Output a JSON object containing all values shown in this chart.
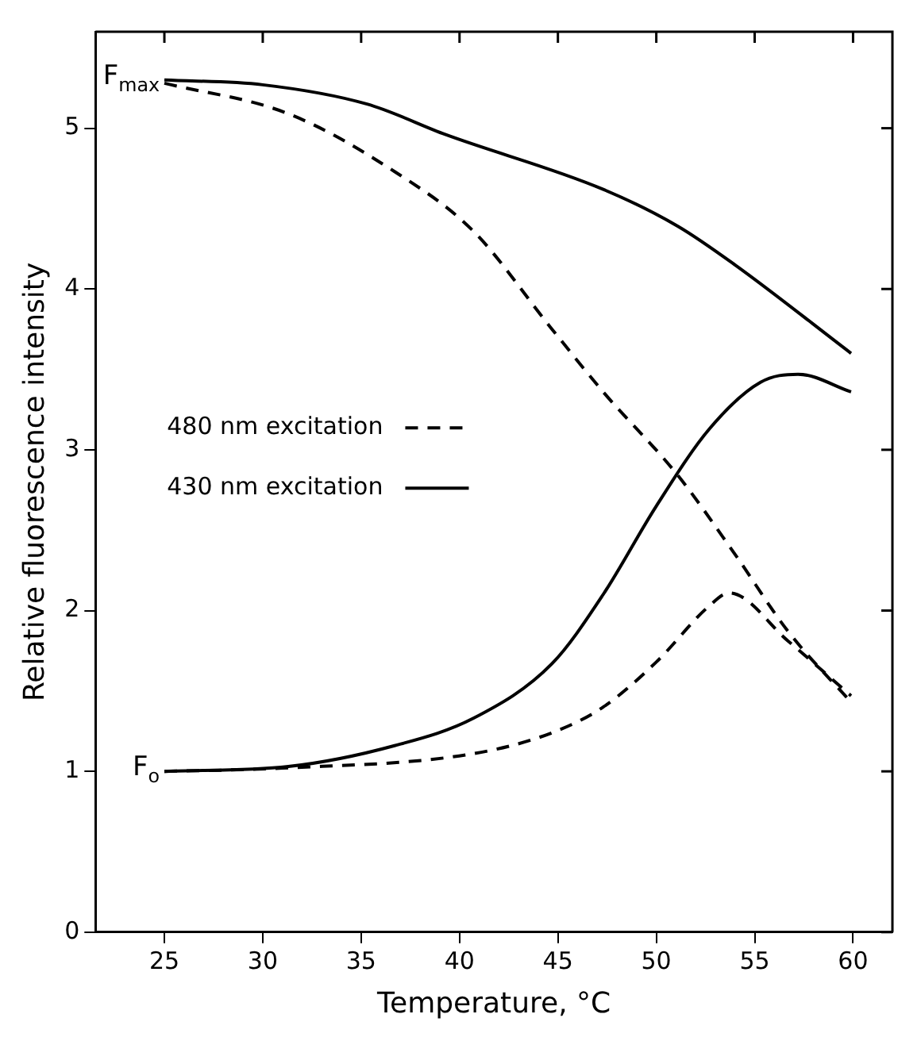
{
  "chart_data": {
    "type": "line",
    "xlabel": "Temperature, °C",
    "ylabel": "Relative fluorescence intensity",
    "xlim": [
      21.5,
      62
    ],
    "ylim": [
      0,
      5.6
    ],
    "xticks": [
      25,
      30,
      35,
      40,
      45,
      50,
      55,
      60
    ],
    "yticks": [
      0,
      1,
      2,
      3,
      4,
      5
    ],
    "grid": false,
    "legend": "left",
    "marker": "none",
    "annotations": [
      {
        "text": "F$_{max}$",
        "x": 25,
        "y": 5.3
      },
      {
        "text": "F$_{o}$",
        "x": 25,
        "y": 1
      }
    ],
    "series": [
      {
        "name": "480 nm excitation",
        "color": "#000000",
        "line_style": "dashed",
        "x": [
          25,
          31.3,
          36.7,
          40.7,
          44.7,
          47.3,
          51.1,
          54,
          56.7,
          59.9
        ],
        "values": [
          5.28,
          5.09,
          4.73,
          4.36,
          3.75,
          3.36,
          2.84,
          2.35,
          1.87,
          1.43
        ]
      },
      {
        "name": "430 nm excitation",
        "color": "#000000",
        "line_style": "solid",
        "x": [
          25,
          30,
          35.3,
          39.3,
          47.3,
          51.1,
          54,
          59.9
        ],
        "values": [
          5.3,
          5.27,
          5.15,
          4.96,
          4.62,
          4.39,
          4.15,
          3.6
        ]
      },
      {
        "color": "#000000",
        "line_style": "solid",
        "x": [
          25,
          31.3,
          36.7,
          40.7,
          44.7,
          47.3,
          50,
          52.7,
          55.3,
          57.2,
          59.9
        ],
        "values": [
          1.0,
          1.03,
          1.16,
          1.33,
          1.67,
          2.1,
          2.65,
          3.13,
          3.42,
          3.47,
          3.36
        ]
      },
      {
        "color": "#000000",
        "line_style": "dashed",
        "x": [
          25,
          31,
          40.7,
          44.7,
          47.3,
          50,
          52.7,
          53.7,
          56.7,
          59.9
        ],
        "values": [
          1.0,
          1.02,
          1.11,
          1.24,
          1.4,
          1.68,
          2.03,
          2.11,
          1.81,
          1.47
        ]
      }
    ]
  }
}
